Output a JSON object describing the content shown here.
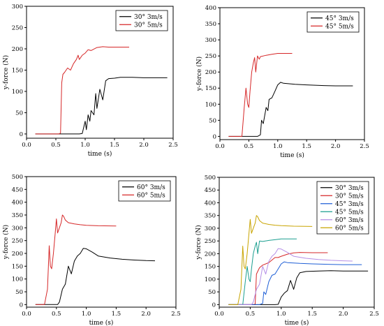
{
  "chart_data": [
    {
      "type": "line",
      "xlabel": "time (s)",
      "ylabel": "y-force (N)",
      "xlim": [
        0,
        2.5
      ],
      "ylim": [
        -10,
        300
      ],
      "xticks": [
        0,
        0.5,
        1,
        1.5,
        2,
        2.5
      ],
      "xtick_labels": [
        "0.0",
        "0.5",
        "1.0",
        "1.5",
        "2.0",
        "2.5"
      ],
      "yticks": [
        0,
        50,
        100,
        150,
        200,
        250,
        300
      ],
      "ytick_labels": [
        "0",
        "50",
        "100",
        "150",
        "200",
        "250",
        "300"
      ],
      "legend_position": "top-right",
      "series": [
        {
          "name": "30° 3m/s",
          "color": "#000000",
          "x": [
            0.15,
            0.5,
            0.9,
            0.95,
            1.0,
            1.02,
            1.05,
            1.08,
            1.1,
            1.15,
            1.18,
            1.2,
            1.25,
            1.3,
            1.35,
            1.4,
            1.5,
            1.6,
            1.8,
            2.0,
            2.2,
            2.4
          ],
          "y": [
            0,
            0,
            0,
            1,
            30,
            10,
            45,
            30,
            55,
            45,
            95,
            60,
            105,
            80,
            125,
            130,
            131,
            133,
            133,
            132,
            132,
            132
          ]
        },
        {
          "name": "30° 5m/s",
          "color": "#d62728",
          "x": [
            0.15,
            0.55,
            0.58,
            0.6,
            0.62,
            0.65,
            0.7,
            0.75,
            0.8,
            0.85,
            0.88,
            0.9,
            0.95,
            1.0,
            1.05,
            1.1,
            1.2,
            1.3,
            1.4,
            1.5,
            1.6,
            1.75
          ],
          "y": [
            0,
            0,
            2,
            120,
            140,
            145,
            155,
            150,
            165,
            175,
            185,
            175,
            185,
            190,
            198,
            196,
            203,
            205,
            204,
            204,
            204,
            204
          ]
        }
      ]
    },
    {
      "type": "line",
      "xlabel": "time (s)",
      "ylabel": "y-force (N)",
      "xlim": [
        0,
        2.5
      ],
      "ylim": [
        -10,
        400
      ],
      "xticks": [
        0,
        0.5,
        1,
        1.5,
        2,
        2.5
      ],
      "xtick_labels": [
        "0.0",
        "0.5",
        "1.0",
        "1.5",
        "2.0",
        "2.5"
      ],
      "yticks": [
        0,
        50,
        100,
        150,
        200,
        250,
        300,
        350,
        400
      ],
      "ytick_labels": [
        "0",
        "50",
        "100",
        "150",
        "200",
        "250",
        "300",
        "350",
        "400"
      ],
      "legend_position": "top-right",
      "series": [
        {
          "name": "45° 3m/s",
          "color": "#000000",
          "x": [
            0.15,
            0.65,
            0.7,
            0.72,
            0.75,
            0.8,
            0.83,
            0.85,
            0.9,
            0.95,
            1.0,
            1.05,
            1.1,
            1.3,
            1.5,
            1.8,
            2.0,
            2.3
          ],
          "y": [
            0,
            0,
            5,
            50,
            40,
            90,
            80,
            115,
            120,
            140,
            160,
            168,
            165,
            162,
            160,
            158,
            157,
            157
          ]
        },
        {
          "name": "45° 5m/s",
          "color": "#d62728",
          "x": [
            0.15,
            0.38,
            0.42,
            0.45,
            0.48,
            0.5,
            0.52,
            0.55,
            0.58,
            0.6,
            0.62,
            0.65,
            0.68,
            0.7,
            0.8,
            0.9,
            1.0,
            1.1,
            1.25
          ],
          "y": [
            0,
            0,
            90,
            150,
            100,
            90,
            140,
            200,
            230,
            245,
            200,
            250,
            240,
            248,
            252,
            255,
            258,
            258,
            258
          ]
        }
      ]
    },
    {
      "type": "line",
      "xlabel": "time (s)",
      "ylabel": "y-force (N)",
      "xlim": [
        0,
        2.5
      ],
      "ylim": [
        -10,
        500
      ],
      "xticks": [
        0,
        0.5,
        1,
        1.5,
        2,
        2.5
      ],
      "xtick_labels": [
        "0.0",
        "0.5",
        "1.0",
        "1.5",
        "2.0",
        "2.5"
      ],
      "yticks": [
        0,
        50,
        100,
        150,
        200,
        250,
        300,
        350,
        400,
        450,
        500
      ],
      "ytick_labels": [
        "0",
        "50",
        "100",
        "150",
        "200",
        "250",
        "300",
        "350",
        "400",
        "450",
        "500"
      ],
      "legend_position": "top-right",
      "series": [
        {
          "name": "60° 3m/s",
          "color": "#000000",
          "x": [
            0.15,
            0.52,
            0.55,
            0.6,
            0.65,
            0.7,
            0.75,
            0.8,
            0.85,
            0.9,
            0.95,
            1.0,
            1.1,
            1.2,
            1.4,
            1.6,
            1.8,
            2.0,
            2.15
          ],
          "y": [
            0,
            0,
            10,
            60,
            80,
            150,
            120,
            170,
            190,
            200,
            220,
            218,
            205,
            190,
            182,
            177,
            174,
            172,
            171
          ]
        },
        {
          "name": "60° 5m/s",
          "color": "#d62728",
          "x": [
            0.15,
            0.3,
            0.35,
            0.38,
            0.4,
            0.42,
            0.45,
            0.48,
            0.5,
            0.52,
            0.55,
            0.58,
            0.6,
            0.62,
            0.65,
            0.7,
            0.8,
            0.9,
            1.0,
            1.2,
            1.5
          ],
          "y": [
            0,
            0,
            60,
            230,
            150,
            140,
            200,
            280,
            335,
            280,
            300,
            320,
            350,
            345,
            330,
            320,
            315,
            312,
            310,
            308,
            307
          ]
        }
      ]
    },
    {
      "type": "line",
      "xlabel": "time (s)",
      "ylabel": "y-force (N)",
      "xlim": [
        0,
        2.5
      ],
      "ylim": [
        -10,
        500
      ],
      "xticks": [
        0,
        0.5,
        1,
        1.5,
        2,
        2.5
      ],
      "xtick_labels": [
        "0.0",
        "0.5",
        "1.0",
        "1.5",
        "2.0",
        "2.5"
      ],
      "yticks": [
        0,
        50,
        100,
        150,
        200,
        250,
        300,
        350,
        400,
        450,
        500
      ],
      "ytick_labels": [
        "0",
        "50",
        "100",
        "150",
        "200",
        "250",
        "300",
        "350",
        "400",
        "450",
        "500"
      ],
      "legend_position": "top-right",
      "series": [
        {
          "name": "30° 3m/s",
          "color": "#000000",
          "x": [
            0.15,
            0.9,
            0.95,
            1.0,
            1.05,
            1.1,
            1.15,
            1.2,
            1.25,
            1.3,
            1.4,
            1.6,
            1.8,
            2.0,
            2.2,
            2.4
          ],
          "y": [
            0,
            0,
            1,
            30,
            45,
            55,
            95,
            60,
            105,
            125,
            130,
            132,
            133,
            132,
            132,
            132
          ]
        },
        {
          "name": "30° 5m/s",
          "color": "#d62728",
          "x": [
            0.15,
            0.55,
            0.58,
            0.6,
            0.65,
            0.7,
            0.8,
            0.85,
            0.9,
            0.95,
            1.0,
            1.1,
            1.2,
            1.3,
            1.5,
            1.75
          ],
          "y": [
            0,
            0,
            2,
            120,
            145,
            155,
            165,
            175,
            185,
            185,
            190,
            198,
            203,
            205,
            204,
            204
          ]
        },
        {
          "name": "45° 3m/s",
          "color": "#1f5fd6",
          "x": [
            0.15,
            0.65,
            0.7,
            0.72,
            0.75,
            0.8,
            0.85,
            0.9,
            0.95,
            1.0,
            1.05,
            1.1,
            1.3,
            1.5,
            1.8,
            2.0,
            2.3
          ],
          "y": [
            0,
            0,
            5,
            50,
            40,
            90,
            115,
            120,
            140,
            160,
            168,
            165,
            162,
            160,
            158,
            157,
            157
          ]
        },
        {
          "name": "45° 5m/s",
          "color": "#1a9e8f",
          "x": [
            0.15,
            0.38,
            0.42,
            0.45,
            0.48,
            0.5,
            0.52,
            0.55,
            0.58,
            0.6,
            0.62,
            0.65,
            0.7,
            0.8,
            0.9,
            1.0,
            1.1,
            1.25
          ],
          "y": [
            0,
            0,
            90,
            150,
            100,
            90,
            140,
            200,
            230,
            245,
            200,
            250,
            248,
            252,
            255,
            258,
            258,
            258
          ]
        },
        {
          "name": "60° 3m/s",
          "color": "#b48ee6",
          "x": [
            0.15,
            0.52,
            0.55,
            0.6,
            0.65,
            0.7,
            0.75,
            0.8,
            0.85,
            0.9,
            0.95,
            1.0,
            1.1,
            1.2,
            1.4,
            1.6,
            1.8,
            2.0,
            2.15
          ],
          "y": [
            0,
            0,
            10,
            60,
            80,
            150,
            120,
            170,
            190,
            200,
            220,
            218,
            205,
            190,
            182,
            177,
            174,
            172,
            171
          ]
        },
        {
          "name": "60° 5m/s",
          "color": "#c8a400",
          "x": [
            0.15,
            0.3,
            0.35,
            0.38,
            0.4,
            0.42,
            0.45,
            0.48,
            0.5,
            0.52,
            0.55,
            0.58,
            0.6,
            0.62,
            0.65,
            0.7,
            0.8,
            0.9,
            1.0,
            1.2,
            1.5
          ],
          "y": [
            0,
            0,
            60,
            230,
            150,
            140,
            200,
            280,
            335,
            280,
            300,
            320,
            350,
            345,
            330,
            320,
            315,
            312,
            310,
            308,
            307
          ]
        }
      ]
    }
  ]
}
